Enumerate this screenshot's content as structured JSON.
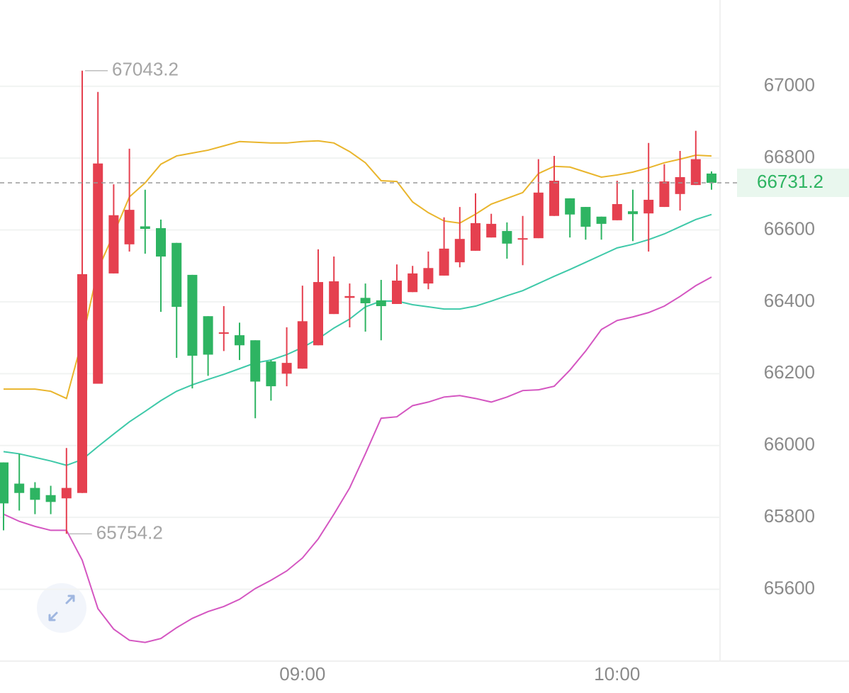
{
  "chart_data": {
    "type": "candlestick",
    "categories": [
      null,
      null,
      null,
      null,
      null,
      null,
      null,
      null,
      null,
      null,
      null,
      null,
      null,
      null,
      null,
      null,
      null,
      null,
      null,
      "09:00",
      null,
      null,
      null,
      null,
      null,
      null,
      null,
      null,
      null,
      null,
      null,
      null,
      null,
      null,
      null,
      null,
      null,
      null,
      null,
      "10:00",
      null,
      null,
      null,
      null,
      null,
      null
    ],
    "open": [
      65953,
      65894,
      65882,
      65862,
      65853,
      65868,
      66172,
      66479,
      66560,
      66610,
      66605,
      66564,
      66475,
      66360,
      66311,
      66307,
      66293,
      66234,
      66200,
      66214,
      66279,
      66366,
      66411,
      66411,
      66404,
      66394,
      66427,
      66451,
      66473,
      66510,
      66542,
      66579,
      66597,
      66575,
      66577,
      66639,
      66688,
      66664,
      66637,
      66627,
      66652,
      66646,
      66664,
      66700,
      66725,
      66757
    ],
    "high": [
      65953,
      65977,
      65898,
      65888,
      65993,
      67043.2,
      66984,
      66727,
      66826,
      66712,
      66629,
      66564,
      66475,
      66360,
      66388,
      66342,
      66293,
      66238,
      66329,
      66445,
      66546,
      66526,
      66451,
      66451,
      66461,
      66504,
      66500,
      66540,
      66635,
      66664,
      66702,
      66645,
      66621,
      66639,
      66797,
      66806,
      66688,
      66664,
      66637,
      66737,
      66712,
      66842,
      66783,
      66820,
      66876,
      66763
    ],
    "low": [
      65764,
      65819,
      65809,
      65809,
      65754.2,
      65868,
      66172,
      66479,
      66540,
      66534,
      66372,
      66244,
      66159,
      66194,
      66263,
      66238,
      66076,
      66125,
      66165,
      66214,
      66279,
      66366,
      66329,
      66317,
      66293,
      66394,
      66427,
      66435,
      66473,
      66496,
      66542,
      66579,
      66520,
      66502,
      66577,
      66639,
      66579,
      66573,
      66573,
      66627,
      66569,
      66540,
      66664,
      66654,
      66725,
      66712
    ],
    "close": [
      65839,
      65868,
      65849,
      65843,
      65882,
      66477,
      66785,
      66641,
      66656,
      66603,
      66526,
      66386,
      66250,
      66253,
      66315,
      66279,
      66178,
      66165,
      66230,
      66346,
      66455,
      66457,
      66416,
      66396,
      66388,
      66459,
      66479,
      66494,
      66548,
      66575,
      66619,
      66617,
      66562,
      66577,
      66704,
      66737,
      66643,
      66609,
      66617,
      66672,
      66644,
      66684,
      66735,
      66747,
      66797,
      66731.2
    ],
    "up_color": "#e5404f",
    "down_color": "#2eb462",
    "bands": [
      {
        "color": "#e9b52c",
        "values": [
          66157,
          66157,
          66157,
          66151,
          66131,
          66293,
          66490,
          66589,
          66692,
          66731,
          66783,
          66806,
          66814,
          66822,
          66834,
          66846,
          66844,
          66842,
          66842,
          66846,
          66848,
          66842,
          66818,
          66787,
          66737,
          66735,
          66678,
          66648,
          66625,
          66619,
          66644,
          66672,
          66688,
          66704,
          66757,
          66777,
          66775,
          66761,
          66747,
          66753,
          66761,
          66773,
          66787,
          66797,
          66808,
          66806
        ]
      },
      {
        "color": "#3fc9a9",
        "values": [
          65983,
          65977,
          65967,
          65957,
          65945,
          65961,
          65997,
          66032,
          66066,
          66095,
          66125,
          66151,
          66169,
          66184,
          66198,
          66214,
          66230,
          66238,
          66253,
          66273,
          66297,
          66327,
          66352,
          66386,
          66402,
          66402,
          66392,
          66386,
          66380,
          66380,
          66388,
          66402,
          66417,
          66431,
          66451,
          66471,
          66490,
          66510,
          66530,
          66550,
          66560,
          66573,
          66589,
          66609,
          66629,
          66643
        ]
      },
      {
        "color": "#d456c1",
        "values": [
          65809,
          65789,
          65775,
          65764,
          65764,
          65681,
          65546,
          65489,
          65458,
          65452,
          65463,
          65493,
          65519,
          65538,
          65552,
          65572,
          65602,
          65625,
          65651,
          65687,
          65740,
          65809,
          65882,
          65977,
          66076,
          66080,
          66111,
          66121,
          66135,
          66139,
          66131,
          66121,
          66135,
          66153,
          66155,
          66165,
          66210,
          66263,
          66323,
          66348,
          66358,
          66370,
          66388,
          66415,
          66445,
          66469
        ]
      }
    ],
    "ylim": [
      65400,
      67240
    ],
    "yticks": [
      65600,
      65800,
      66000,
      66200,
      66400,
      66600,
      66800,
      67000
    ],
    "grid": true
  }
}
